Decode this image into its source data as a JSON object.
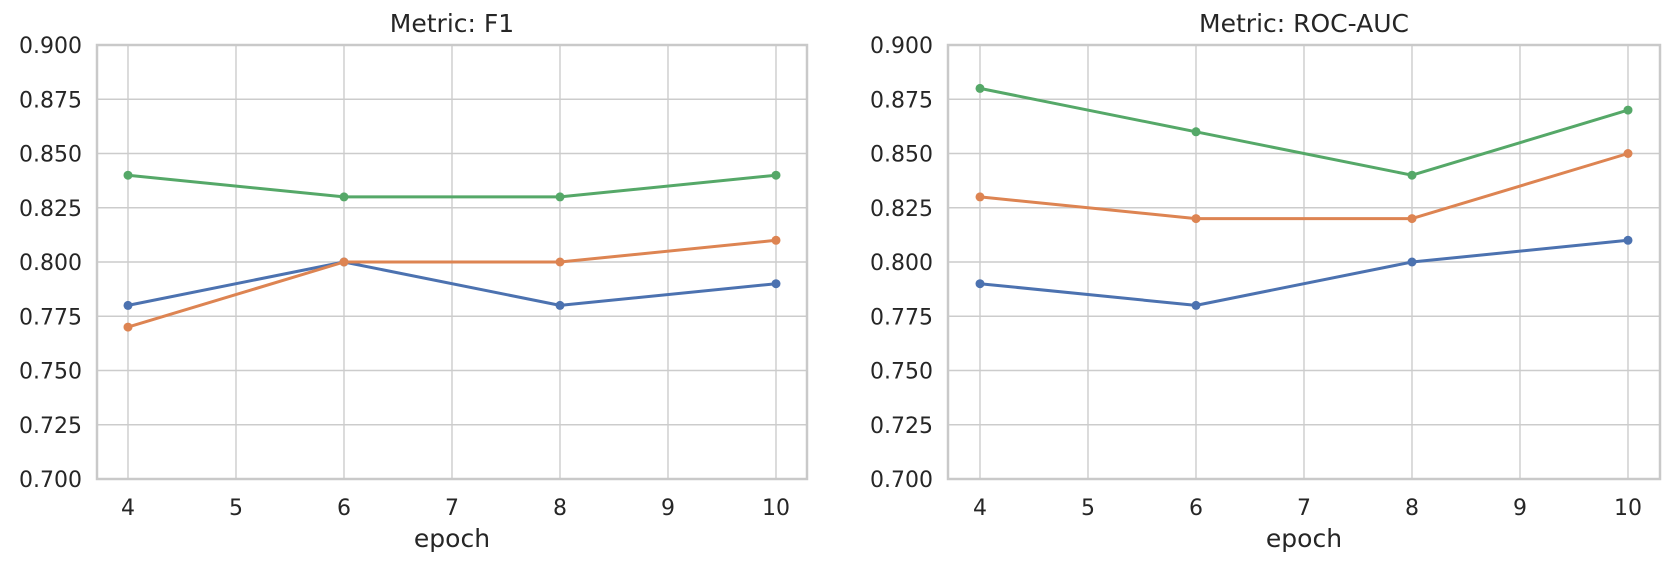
{
  "figure": {
    "background": "#ffffff",
    "grid_color": "#cccccc",
    "spine_color": "#c9c9c9",
    "tick_label_color": "#262626",
    "title_color": "#262626"
  },
  "chart_data": [
    {
      "type": "line",
      "title": "Metric: F1",
      "xlabel": "epoch",
      "ylabel": "",
      "grid": true,
      "legend": "none",
      "xlim": [
        4,
        10
      ],
      "ylim": [
        0.7,
        0.9
      ],
      "x": [
        4,
        6,
        8,
        10
      ],
      "x_tick_values": [
        4,
        5,
        6,
        7,
        8,
        9,
        10
      ],
      "x_tick_labels": [
        "4",
        "5",
        "6",
        "7",
        "8",
        "9",
        "10"
      ],
      "y_tick_values": [
        0.7,
        0.725,
        0.75,
        0.775,
        0.8,
        0.825,
        0.85,
        0.875,
        0.9
      ],
      "y_tick_labels": [
        "0.700",
        "0.725",
        "0.750",
        "0.775",
        "0.800",
        "0.825",
        "0.850",
        "0.875",
        "0.900"
      ],
      "series": [
        {
          "name": "blue-series",
          "color": "#4c72b0",
          "marker": "circle",
          "values": [
            0.78,
            0.8,
            0.78,
            0.79
          ]
        },
        {
          "name": "orange-series",
          "color": "#dd8452",
          "marker": "circle",
          "values": [
            0.77,
            0.8,
            0.8,
            0.81
          ]
        },
        {
          "name": "green-series",
          "color": "#55a868",
          "marker": "circle",
          "values": [
            0.84,
            0.83,
            0.83,
            0.84
          ]
        }
      ]
    },
    {
      "type": "line",
      "title": "Metric: ROC-AUC",
      "xlabel": "epoch",
      "ylabel": "",
      "grid": true,
      "legend": "none",
      "xlim": [
        4,
        10
      ],
      "ylim": [
        0.7,
        0.9
      ],
      "x": [
        4,
        6,
        8,
        10
      ],
      "x_tick_values": [
        4,
        5,
        6,
        7,
        8,
        9,
        10
      ],
      "x_tick_labels": [
        "4",
        "5",
        "6",
        "7",
        "8",
        "9",
        "10"
      ],
      "y_tick_values": [
        0.7,
        0.725,
        0.75,
        0.775,
        0.8,
        0.825,
        0.85,
        0.875,
        0.9
      ],
      "y_tick_labels": [
        "0.700",
        "0.725",
        "0.750",
        "0.775",
        "0.800",
        "0.825",
        "0.850",
        "0.875",
        "0.900"
      ],
      "series": [
        {
          "name": "blue-series",
          "color": "#4c72b0",
          "marker": "circle",
          "values": [
            0.79,
            0.78,
            0.8,
            0.81
          ]
        },
        {
          "name": "orange-series",
          "color": "#dd8452",
          "marker": "circle",
          "values": [
            0.83,
            0.82,
            0.82,
            0.85
          ]
        },
        {
          "name": "green-series",
          "color": "#55a868",
          "marker": "circle",
          "values": [
            0.88,
            0.86,
            0.84,
            0.87
          ]
        }
      ]
    }
  ]
}
